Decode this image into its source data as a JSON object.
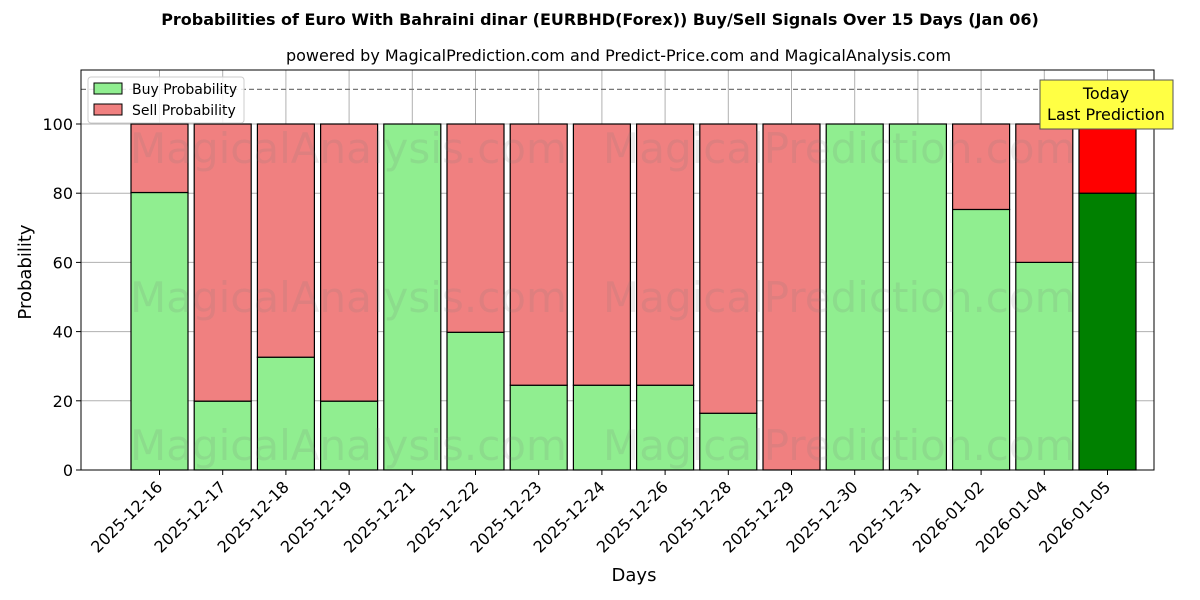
{
  "title": "Probabilities of Euro With Bahraini dinar (EURBHD(Forex)) Buy/Sell Signals Over 15 Days (Jan 06)",
  "subtitle": "powered by MagicalPrediction.com and Predict-Price.com and MagicalAnalysis.com",
  "annotation": {
    "line1": "Today",
    "line2": "Last Prediction"
  },
  "watermarks": [
    "MagicalAnalysis.com",
    "MagicalPrediction.com"
  ],
  "colors": {
    "buy": "#90ee90",
    "sell": "#f08080",
    "today_buy": "#008000",
    "today_sell": "#ff0000",
    "annotation_bg": "#ffff44"
  },
  "chart_data": {
    "type": "bar",
    "stacked": true,
    "title": "Probabilities of Euro With Bahraini dinar (EURBHD(Forex)) Buy/Sell Signals Over 15 Days (Jan 06)",
    "xlabel": "Days",
    "ylabel": "Probability",
    "ylim": [
      0,
      115
    ],
    "yticks": [
      0,
      20,
      40,
      60,
      80,
      100
    ],
    "grid": true,
    "legend_position": "upper left",
    "reference_line": 110,
    "categories": [
      "2025-12-16",
      "2025-12-17",
      "2025-12-18",
      "2025-12-19",
      "2025-12-21",
      "2025-12-22",
      "2025-12-23",
      "2025-12-24",
      "2025-12-26",
      "2025-12-28",
      "2025-12-29",
      "2025-12-30",
      "2025-12-31",
      "2026-01-02",
      "2026-01-04",
      "2026-01-05"
    ],
    "series": [
      {
        "name": "Buy Probability",
        "values": [
          80.2,
          19.9,
          32.6,
          19.9,
          100,
          39.8,
          24.5,
          24.5,
          24.5,
          16.4,
          0,
          100,
          100,
          75.3,
          60.0,
          80.0
        ]
      },
      {
        "name": "Sell Probability",
        "values": [
          19.8,
          80.1,
          67.4,
          80.1,
          0,
          60.2,
          75.5,
          75.5,
          75.5,
          83.6,
          100,
          0,
          0,
          24.7,
          40.0,
          20.0
        ]
      }
    ]
  }
}
